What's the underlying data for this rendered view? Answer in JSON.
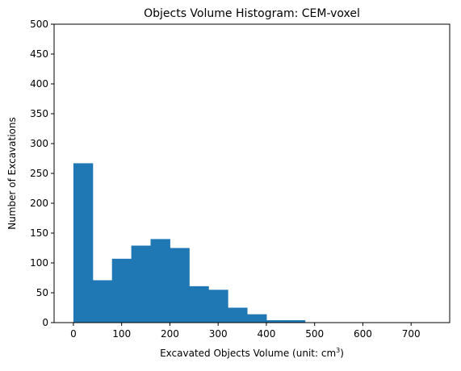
{
  "chart_data": {
    "type": "bar",
    "title": "Objects Volume Histogram: CEM-voxel",
    "xlabel": "Excavated Objects Volume (unit: cm",
    "xlabel_sup": "3",
    "xlabel_suffix": ")",
    "ylabel": "Number of Excavations",
    "xlim": [
      -40,
      780
    ],
    "ylim": [
      0,
      500
    ],
    "xticks": [
      0,
      100,
      200,
      300,
      400,
      500,
      600,
      700
    ],
    "yticks": [
      0,
      50,
      100,
      150,
      200,
      250,
      300,
      350,
      400,
      450,
      500
    ],
    "grid": false,
    "bar_color": "#1f77b4",
    "bins": [
      {
        "x0": 0,
        "x1": 40,
        "value": 267
      },
      {
        "x0": 40,
        "x1": 80,
        "value": 71
      },
      {
        "x0": 80,
        "x1": 120,
        "value": 107
      },
      {
        "x0": 120,
        "x1": 160,
        "value": 129
      },
      {
        "x0": 160,
        "x1": 200,
        "value": 140
      },
      {
        "x0": 200,
        "x1": 240,
        "value": 125
      },
      {
        "x0": 240,
        "x1": 280,
        "value": 61
      },
      {
        "x0": 280,
        "x1": 320,
        "value": 55
      },
      {
        "x0": 320,
        "x1": 360,
        "value": 25
      },
      {
        "x0": 360,
        "x1": 400,
        "value": 14
      },
      {
        "x0": 400,
        "x1": 440,
        "value": 4
      },
      {
        "x0": 440,
        "x1": 480,
        "value": 4
      },
      {
        "x0": 480,
        "x1": 520,
        "value": 0
      },
      {
        "x0": 520,
        "x1": 560,
        "value": 0
      },
      {
        "x0": 560,
        "x1": 600,
        "value": 0
      },
      {
        "x0": 600,
        "x1": 640,
        "value": 0
      },
      {
        "x0": 640,
        "x1": 680,
        "value": 0
      },
      {
        "x0": 680,
        "x1": 720,
        "value": 0
      },
      {
        "x0": 720,
        "x1": 760,
        "value": 0
      }
    ]
  }
}
